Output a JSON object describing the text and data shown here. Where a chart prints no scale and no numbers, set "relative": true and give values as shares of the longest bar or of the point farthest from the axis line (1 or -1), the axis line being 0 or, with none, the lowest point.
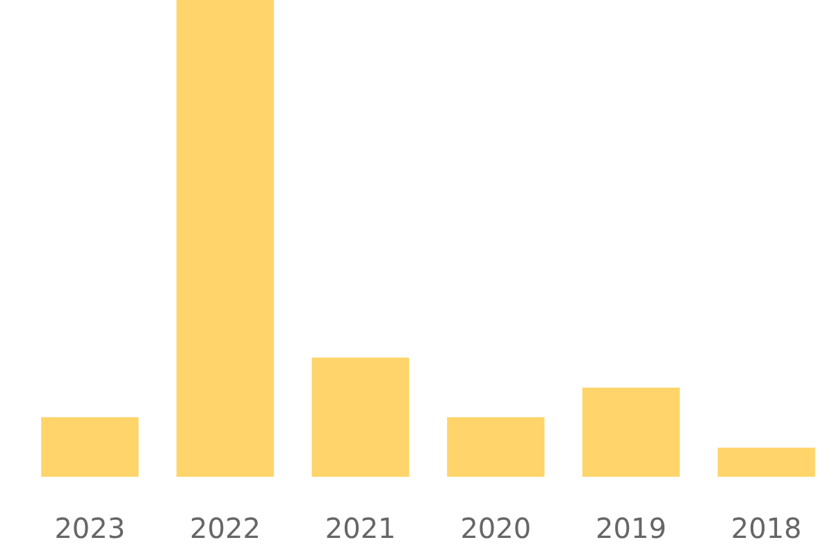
{
  "chart_data": {
    "type": "bar",
    "relative": true,
    "categories": [
      "2023",
      "2022",
      "2021",
      "2020",
      "2019",
      "2018"
    ],
    "values": [
      0.125,
      1,
      0.25,
      0.125,
      0.187,
      0.061
    ],
    "color": "#ffd56b"
  }
}
